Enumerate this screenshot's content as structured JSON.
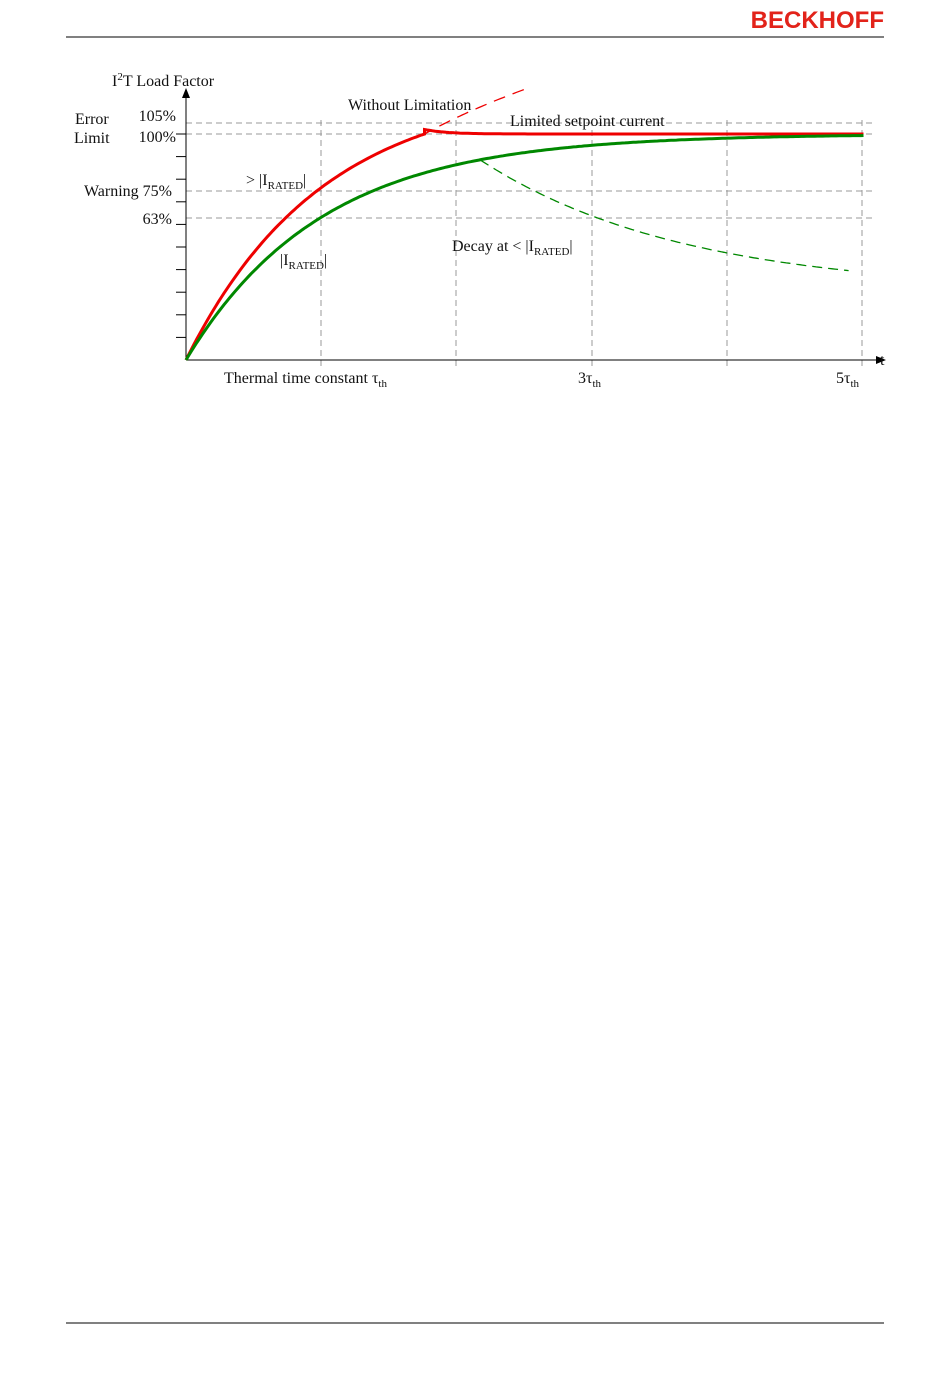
{
  "header": {
    "logo": "BECKHOFF"
  },
  "diagram": {
    "y_axis_title": {
      "base": "I",
      "sup": "2",
      "rest": "T Load Factor"
    },
    "y_labels": {
      "error": "Error",
      "error_value": "105%",
      "limit": "Limit",
      "limit_value": "100%",
      "warning": "Warning 75%",
      "tau_value": "63%"
    },
    "annotations": {
      "without_limitation": "Without Limitation",
      "limited": "Limited setpoint current",
      "above_rated": {
        "pre": "> |I",
        "sub": "RATED",
        "post": "|"
      },
      "rated": {
        "pre": "|I",
        "sub": "RATED",
        "post": "|"
      },
      "decay": {
        "pre": "Decay at < |I",
        "sub": "RATED",
        "post": "|"
      }
    },
    "x_axis": {
      "t": "t",
      "tau": {
        "pre": "Thermal time constant τ",
        "sub": "th"
      },
      "tau3": {
        "pre": "3τ",
        "sub": "th"
      },
      "tau5": {
        "pre": "5τ",
        "sub": "th"
      }
    }
  }
}
